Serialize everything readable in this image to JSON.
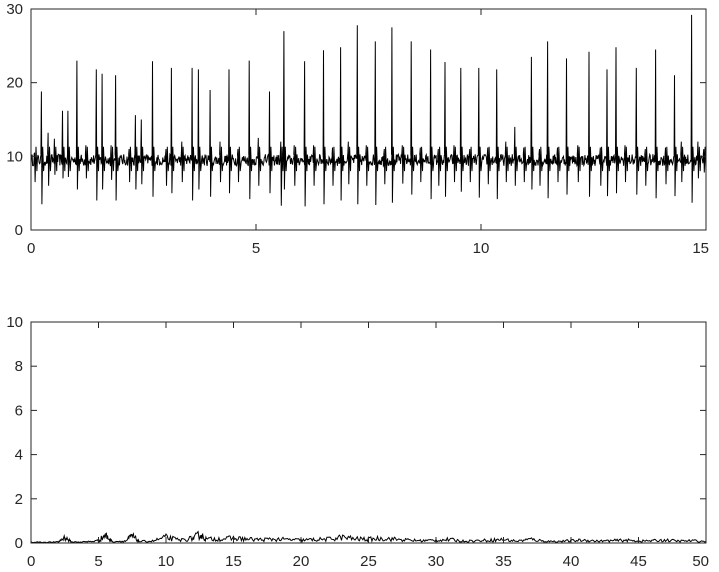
{
  "chart_data": [
    {
      "type": "line",
      "title": "",
      "xlabel": "",
      "ylabel": "",
      "xlim": [
        0,
        15
      ],
      "ylim": [
        0,
        30
      ],
      "xticks": [
        "0",
        "5",
        "10",
        "15"
      ],
      "yticks": [
        "0",
        "10",
        "20",
        "30"
      ],
      "grid": false,
      "line_color": "#000000",
      "series": [
        {
          "baseline": 9.5,
          "peaks": [
            {
              "x": 0.08,
              "y": 10.5,
              "low": 6.5
            },
            {
              "x": 0.23,
              "y": 18.8,
              "low": 3.5
            },
            {
              "x": 0.38,
              "y": 13.2,
              "low": 6.0
            },
            {
              "x": 0.52,
              "y": 12.4,
              "low": 7.5
            },
            {
              "x": 0.7,
              "y": 16.2,
              "low": 7.0
            },
            {
              "x": 0.82,
              "y": 16.2,
              "low": 7.2
            },
            {
              "x": 1.02,
              "y": 23.0,
              "low": 5.5
            },
            {
              "x": 1.22,
              "y": 11.5,
              "low": 7.0
            },
            {
              "x": 1.45,
              "y": 21.8,
              "low": 4.0
            },
            {
              "x": 1.58,
              "y": 21.2,
              "low": 5.5
            },
            {
              "x": 1.78,
              "y": 11.5,
              "low": 6.8
            },
            {
              "x": 1.88,
              "y": 21.0,
              "low": 4.0
            },
            {
              "x": 2.18,
              "y": 11.0,
              "low": 6.5
            },
            {
              "x": 2.32,
              "y": 15.6,
              "low": 5.5
            },
            {
              "x": 2.45,
              "y": 15.0,
              "low": 6.2
            },
            {
              "x": 2.7,
              "y": 22.9,
              "low": 4.5
            },
            {
              "x": 3.0,
              "y": 11.0,
              "low": 6.0
            },
            {
              "x": 3.12,
              "y": 22.0,
              "low": 5.0
            },
            {
              "x": 3.35,
              "y": 12.0,
              "low": 6.5
            },
            {
              "x": 3.58,
              "y": 22.0,
              "low": 4.0
            },
            {
              "x": 3.72,
              "y": 21.8,
              "low": 5.5
            },
            {
              "x": 3.98,
              "y": 19.0,
              "low": 4.5
            },
            {
              "x": 4.2,
              "y": 12.0,
              "low": 6.5
            },
            {
              "x": 4.4,
              "y": 21.8,
              "low": 5.0
            },
            {
              "x": 4.6,
              "y": 11.0,
              "low": 6.5
            },
            {
              "x": 4.85,
              "y": 23.0,
              "low": 4.2
            },
            {
              "x": 5.05,
              "y": 12.5,
              "low": 6.0
            },
            {
              "x": 5.3,
              "y": 18.8,
              "low": 5.0
            },
            {
              "x": 5.55,
              "y": 12.0,
              "low": 3.3
            },
            {
              "x": 5.62,
              "y": 27.0,
              "low": 5.5
            },
            {
              "x": 5.85,
              "y": 11.5,
              "low": 6.0
            },
            {
              "x": 6.08,
              "y": 22.9,
              "low": 3.2
            },
            {
              "x": 6.28,
              "y": 11.5,
              "low": 6.0
            },
            {
              "x": 6.5,
              "y": 24.4,
              "low": 3.5
            },
            {
              "x": 6.7,
              "y": 11.2,
              "low": 6.0
            },
            {
              "x": 6.88,
              "y": 24.8,
              "low": 4.0
            },
            {
              "x": 7.05,
              "y": 12.0,
              "low": 6.2
            },
            {
              "x": 7.25,
              "y": 27.8,
              "low": 3.5
            },
            {
              "x": 7.45,
              "y": 11.5,
              "low": 6.0
            },
            {
              "x": 7.65,
              "y": 25.6,
              "low": 3.4
            },
            {
              "x": 7.85,
              "y": 11.0,
              "low": 6.2
            },
            {
              "x": 8.02,
              "y": 27.5,
              "low": 3.7
            },
            {
              "x": 8.25,
              "y": 11.5,
              "low": 6.3
            },
            {
              "x": 8.45,
              "y": 25.6,
              "low": 4.8
            },
            {
              "x": 8.65,
              "y": 11.2,
              "low": 6.5
            },
            {
              "x": 8.88,
              "y": 24.5,
              "low": 4.2
            },
            {
              "x": 9.05,
              "y": 11.0,
              "low": 6.0
            },
            {
              "x": 9.2,
              "y": 22.8,
              "low": 4.5
            },
            {
              "x": 9.4,
              "y": 11.5,
              "low": 6.5
            },
            {
              "x": 9.55,
              "y": 22.0,
              "low": 5.2
            },
            {
              "x": 9.75,
              "y": 11.0,
              "low": 6.5
            },
            {
              "x": 9.95,
              "y": 22.0,
              "low": 4.4
            },
            {
              "x": 10.15,
              "y": 11.2,
              "low": 6.2
            },
            {
              "x": 10.35,
              "y": 21.8,
              "low": 4.2
            },
            {
              "x": 10.55,
              "y": 12.0,
              "low": 6.5
            },
            {
              "x": 10.75,
              "y": 14.0,
              "low": 6.0
            },
            {
              "x": 10.95,
              "y": 11.2,
              "low": 6.5
            },
            {
              "x": 11.12,
              "y": 23.5,
              "low": 5.5
            },
            {
              "x": 11.3,
              "y": 11.0,
              "low": 6.0
            },
            {
              "x": 11.48,
              "y": 25.6,
              "low": 4.3
            },
            {
              "x": 11.7,
              "y": 11.2,
              "low": 6.5
            },
            {
              "x": 11.9,
              "y": 23.3,
              "low": 4.8
            },
            {
              "x": 12.15,
              "y": 11.5,
              "low": 6.5
            },
            {
              "x": 12.4,
              "y": 24.2,
              "low": 4.5
            },
            {
              "x": 12.65,
              "y": 11.2,
              "low": 6.0
            },
            {
              "x": 12.8,
              "y": 21.8,
              "low": 4.6
            },
            {
              "x": 13.0,
              "y": 24.8,
              "low": 5.0
            },
            {
              "x": 13.2,
              "y": 11.5,
              "low": 6.5
            },
            {
              "x": 13.45,
              "y": 22.0,
              "low": 4.8
            },
            {
              "x": 13.65,
              "y": 11.0,
              "low": 6.0
            },
            {
              "x": 13.88,
              "y": 24.5,
              "low": 4.3
            },
            {
              "x": 14.1,
              "y": 11.2,
              "low": 6.2
            },
            {
              "x": 14.3,
              "y": 21.0,
              "low": 4.6
            },
            {
              "x": 14.45,
              "y": 12.0,
              "low": 6.5
            },
            {
              "x": 14.68,
              "y": 29.2,
              "low": 3.7
            },
            {
              "x": 14.82,
              "y": 12.0,
              "low": 7.0
            },
            {
              "x": 14.95,
              "y": 11.0,
              "low": 7.8
            }
          ]
        }
      ]
    },
    {
      "type": "line",
      "title": "",
      "xlabel": "",
      "ylabel": "",
      "xlim": [
        0,
        50
      ],
      "ylim": [
        0,
        10
      ],
      "xticks": [
        "0",
        "5",
        "10",
        "15",
        "20",
        "25",
        "30",
        "35",
        "40",
        "45",
        "50"
      ],
      "yticks": [
        "0",
        "2",
        "4",
        "6",
        "8",
        "10"
      ],
      "grid": false,
      "line_color": "#000000",
      "series": [
        {
          "x": [
            0,
            1,
            2,
            2.5,
            3,
            4,
            5,
            5.5,
            6,
            7,
            7.5,
            8,
            9,
            10,
            11,
            12,
            12.5,
            13,
            14,
            15,
            16,
            17,
            18,
            19,
            20,
            21,
            22,
            23,
            24,
            25,
            26,
            27,
            28,
            29,
            30,
            31,
            32,
            33,
            34,
            35,
            36,
            37,
            38,
            39,
            40,
            41,
            42,
            43,
            44,
            45,
            46,
            47,
            48,
            49,
            50
          ],
          "y": [
            0.05,
            0.04,
            0.05,
            0.3,
            0.05,
            0.06,
            0.12,
            0.42,
            0.08,
            0.1,
            0.38,
            0.08,
            0.1,
            0.3,
            0.15,
            0.25,
            0.45,
            0.2,
            0.22,
            0.25,
            0.2,
            0.18,
            0.2,
            0.18,
            0.15,
            0.18,
            0.2,
            0.3,
            0.22,
            0.2,
            0.25,
            0.2,
            0.15,
            0.12,
            0.15,
            0.18,
            0.1,
            0.12,
            0.15,
            0.18,
            0.1,
            0.2,
            0.1,
            0.08,
            0.12,
            0.15,
            0.1,
            0.12,
            0.15,
            0.1,
            0.12,
            0.15,
            0.1,
            0.12,
            0.08
          ]
        }
      ]
    }
  ]
}
